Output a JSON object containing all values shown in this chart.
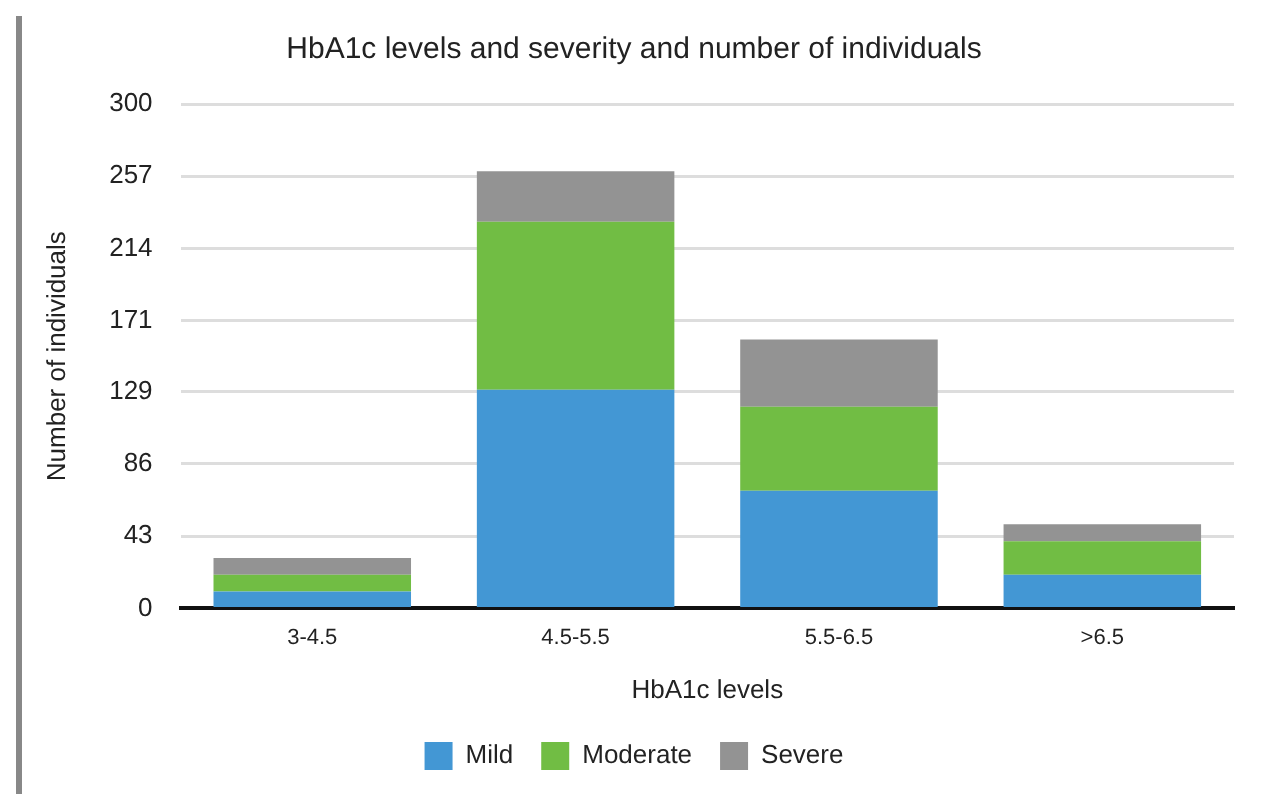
{
  "chart_data": {
    "type": "bar",
    "title": "HbA1c levels and severity and number of individuals",
    "xlabel": "HbA1c levels",
    "ylabel": "Number of individuals",
    "categories": [
      "3-4.5",
      "4.5-5.5",
      "5.5-6.5",
      ">6.5"
    ],
    "stacked": true,
    "series": [
      {
        "name": "Mild",
        "color": "#4397d4",
        "values": [
          10,
          130,
          70,
          20
        ]
      },
      {
        "name": "Moderate",
        "color": "#71bd44",
        "values": [
          10,
          100,
          50,
          20
        ]
      },
      {
        "name": "Severe",
        "color": "#939393",
        "values": [
          10,
          30,
          40,
          10
        ]
      }
    ],
    "ylim": [
      0,
      300
    ],
    "yticks": [
      0,
      43,
      86,
      129,
      171,
      214,
      257,
      300
    ],
    "grid": "y",
    "legend": "bottom"
  }
}
